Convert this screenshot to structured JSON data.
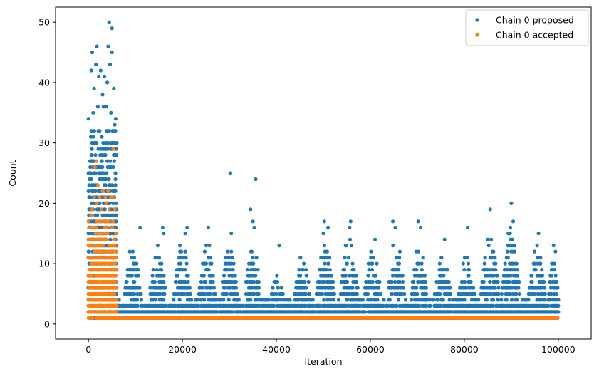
{
  "chart_data": {
    "type": "scatter",
    "title": "",
    "xlabel": "Iteration",
    "ylabel": "Count",
    "xlim": [
      -7000,
      107000
    ],
    "ylim": [
      -2.5,
      52.5
    ],
    "xticks": [
      0,
      20000,
      40000,
      60000,
      80000,
      100000
    ],
    "yticks": [
      0,
      10,
      20,
      30,
      40,
      50
    ],
    "legend_position": "top-right",
    "grid": false,
    "series": [
      {
        "name": "Chain 0 proposed",
        "color": "#1f77b4",
        "bands": [
          {
            "x_start": 0,
            "x_end": 6000,
            "y_min": 1,
            "y_max": 32,
            "step": 125,
            "density": 0.5
          },
          {
            "x_start": 6000,
            "x_end": 100000,
            "y_min": 1,
            "y_max": 4,
            "step": 125,
            "density": 0.9
          }
        ],
        "clusters": [
          {
            "center": 9500,
            "width": 1800,
            "peak": 13
          },
          {
            "center": 14800,
            "width": 1800,
            "peak": 13
          },
          {
            "center": 20000,
            "width": 1800,
            "peak": 13
          },
          {
            "center": 25300,
            "width": 1800,
            "peak": 13
          },
          {
            "center": 30000,
            "width": 1800,
            "peak": 13
          },
          {
            "center": 35000,
            "width": 1800,
            "peak": 13
          },
          {
            "center": 40200,
            "width": 1200,
            "peak": 9
          },
          {
            "center": 45500,
            "width": 1800,
            "peak": 11
          },
          {
            "center": 50500,
            "width": 2000,
            "peak": 13
          },
          {
            "center": 55500,
            "width": 2000,
            "peak": 14
          },
          {
            "center": 60500,
            "width": 1800,
            "peak": 12
          },
          {
            "center": 65500,
            "width": 1800,
            "peak": 14
          },
          {
            "center": 70500,
            "width": 1800,
            "peak": 13
          },
          {
            "center": 75500,
            "width": 1800,
            "peak": 11
          },
          {
            "center": 80500,
            "width": 1800,
            "peak": 11
          },
          {
            "center": 85500,
            "width": 2000,
            "peak": 14
          },
          {
            "center": 90000,
            "width": 2000,
            "peak": 15
          },
          {
            "center": 95500,
            "width": 1800,
            "peak": 12
          },
          {
            "center": 99000,
            "width": 1000,
            "peak": 12
          }
        ],
        "points": [
          [
            0,
            34
          ],
          [
            800,
            45
          ],
          [
            1200,
            39
          ],
          [
            1600,
            43
          ],
          [
            1800,
            46
          ],
          [
            2200,
            41
          ],
          [
            2600,
            42
          ],
          [
            3000,
            38
          ],
          [
            3400,
            41
          ],
          [
            3800,
            36
          ],
          [
            4200,
            46
          ],
          [
            4400,
            50
          ],
          [
            4600,
            43
          ],
          [
            5000,
            49
          ],
          [
            5000,
            45
          ],
          [
            5400,
            39
          ],
          [
            5800,
            34
          ],
          [
            4000,
            40
          ],
          [
            2000,
            36
          ],
          [
            600,
            42
          ],
          [
            1000,
            35
          ],
          [
            3200,
            36
          ],
          [
            4800,
            35
          ],
          [
            5600,
            33
          ],
          [
            11000,
            16
          ],
          [
            15800,
            16
          ],
          [
            16000,
            15
          ],
          [
            21000,
            16
          ],
          [
            20600,
            15
          ],
          [
            25500,
            16
          ],
          [
            30200,
            25
          ],
          [
            30400,
            15
          ],
          [
            34500,
            19
          ],
          [
            35000,
            17
          ],
          [
            35600,
            24
          ],
          [
            35300,
            16
          ],
          [
            40600,
            13
          ],
          [
            50200,
            17
          ],
          [
            50000,
            15
          ],
          [
            51000,
            16
          ],
          [
            55800,
            17
          ],
          [
            55600,
            16
          ],
          [
            61000,
            14
          ],
          [
            64800,
            17
          ],
          [
            65300,
            16
          ],
          [
            70200,
            17
          ],
          [
            70700,
            16
          ],
          [
            75800,
            14
          ],
          [
            80700,
            16
          ],
          [
            85500,
            19
          ],
          [
            85000,
            14
          ],
          [
            90000,
            20
          ],
          [
            90400,
            17
          ],
          [
            89800,
            16
          ],
          [
            95800,
            15
          ],
          [
            95500,
            13
          ],
          [
            99000,
            13
          ],
          [
            99400,
            12
          ]
        ]
      },
      {
        "name": "Chain 0 accepted",
        "color": "#ff7f0e",
        "bands": [
          {
            "x_start": 0,
            "x_end": 6000,
            "y_min": 1,
            "y_max": 17,
            "step": 150,
            "density": 0.7
          },
          {
            "x_start": 6000,
            "x_end": 100000,
            "y_min": 1,
            "y_max": 1,
            "step": 150,
            "density": 1.0
          }
        ],
        "points": [
          [
            1700,
            27
          ],
          [
            5300,
            29
          ],
          [
            1400,
            26
          ],
          [
            2000,
            23
          ],
          [
            1200,
            21
          ],
          [
            3000,
            22
          ],
          [
            4200,
            22
          ],
          [
            2400,
            21
          ],
          [
            3600,
            21
          ],
          [
            4800,
            21
          ],
          [
            5200,
            21
          ],
          [
            800,
            19
          ],
          [
            1800,
            20
          ],
          [
            2800,
            19
          ],
          [
            3800,
            20
          ],
          [
            5600,
            19
          ],
          [
            4400,
            19
          ],
          [
            600,
            18
          ]
        ]
      }
    ]
  }
}
